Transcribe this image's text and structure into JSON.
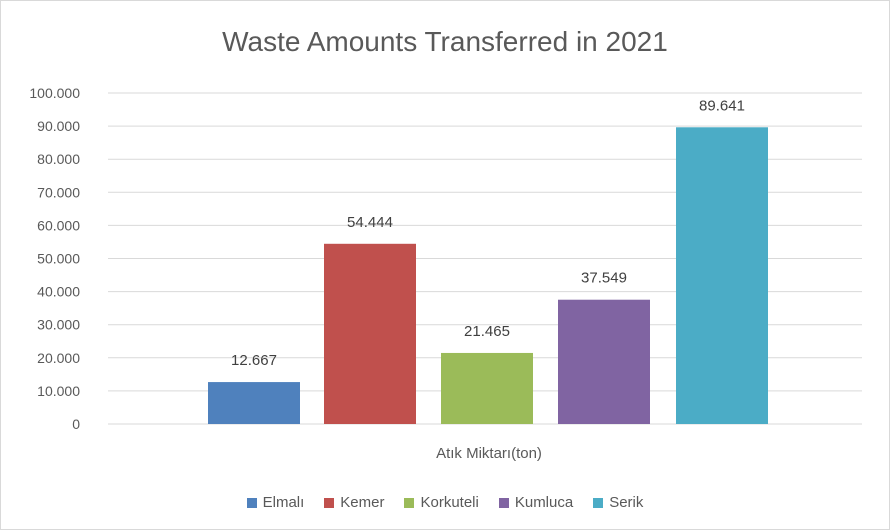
{
  "chart_data": {
    "type": "bar",
    "title": "Waste Amounts Transferred in 2021",
    "categories": [
      "Atık Miktarı(ton)"
    ],
    "series": [
      {
        "name": "Elmalı",
        "values": [
          12667
        ],
        "label": "12.667",
        "color": "#4F81BD"
      },
      {
        "name": "Kemer",
        "values": [
          54444
        ],
        "label": "54.444",
        "color": "#C0504D"
      },
      {
        "name": "Korkuteli",
        "values": [
          21465
        ],
        "label": "21.465",
        "color": "#9BBB59"
      },
      {
        "name": "Kumluca",
        "values": [
          37549
        ],
        "label": "37.549",
        "color": "#8064A2"
      },
      {
        "name": "Serik",
        "values": [
          89641
        ],
        "label": "89.641",
        "color": "#4BACC6"
      }
    ],
    "ylim": [
      0,
      100000
    ],
    "yticks": [
      0,
      10000,
      20000,
      30000,
      40000,
      50000,
      60000,
      70000,
      80000,
      90000,
      100000
    ],
    "ytick_labels": [
      "0",
      "10.000",
      "20.000",
      "30.000",
      "40.000",
      "50.000",
      "60.000",
      "70.000",
      "80.000",
      "90.000",
      "100.000"
    ],
    "xlabel": "",
    "ylabel": "",
    "grid": true,
    "legend_position": "bottom"
  }
}
